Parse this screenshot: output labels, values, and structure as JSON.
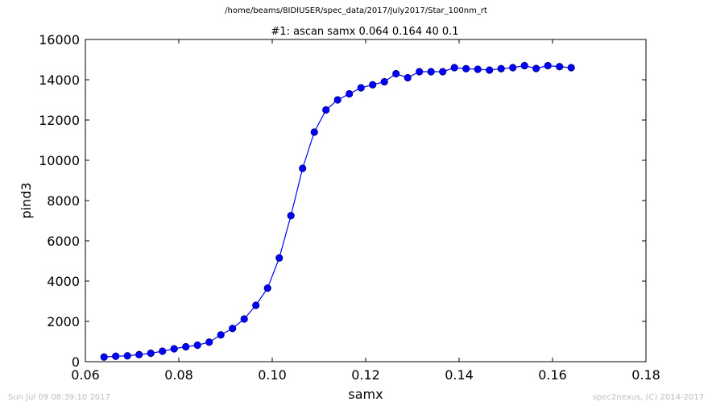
{
  "figure": {
    "suptitle": "/home/beams/8IDIUSER/spec_data/2017/July2017/Star_100nm_rt",
    "timestamp": "Sun Jul 09 08:39:10 2017",
    "credit": "spec2nexus, (C) 2014-2017"
  },
  "colors": {
    "series": "#0000ff",
    "marker_fill": "#0000ff",
    "marker_edge": "#000080",
    "footer_text": "#bdbdbd"
  },
  "chart_data": {
    "type": "line",
    "title": "#1: ascan  samx 0.064 0.164  40 0.1",
    "xlabel": "samx",
    "ylabel": "pind3",
    "xlim": [
      0.06,
      0.18
    ],
    "ylim": [
      0,
      16000
    ],
    "xticks": [
      "0.06",
      "0.08",
      "0.10",
      "0.12",
      "0.14",
      "0.16",
      "0.18"
    ],
    "yticks": [
      "0",
      "2000",
      "4000",
      "6000",
      "8000",
      "10000",
      "12000",
      "14000",
      "16000"
    ],
    "grid": false,
    "markers": "circle",
    "series": [
      {
        "x": [
          0.064,
          0.0665,
          0.069,
          0.0715,
          0.074,
          0.0765,
          0.079,
          0.0815,
          0.084,
          0.0865,
          0.089,
          0.0915,
          0.094,
          0.0965,
          0.099,
          0.1015,
          0.104,
          0.1065,
          0.109,
          0.1115,
          0.114,
          0.1165,
          0.119,
          0.1215,
          0.124,
          0.1265,
          0.129,
          0.1315,
          0.134,
          0.1365,
          0.139,
          0.1415,
          0.144,
          0.1465,
          0.149,
          0.1515,
          0.154,
          0.1565,
          0.159,
          0.1615,
          0.164
        ],
        "y": [
          230,
          270,
          290,
          350,
          420,
          520,
          640,
          740,
          820,
          970,
          1330,
          1650,
          2120,
          2800,
          3650,
          5150,
          7250,
          9600,
          11400,
          12500,
          13000,
          13300,
          13600,
          13750,
          13900,
          14300,
          14100,
          14400,
          14400,
          14400,
          14600,
          14550,
          14520,
          14480,
          14550,
          14600,
          14700,
          14560,
          14700,
          14650,
          14600
        ]
      }
    ]
  }
}
